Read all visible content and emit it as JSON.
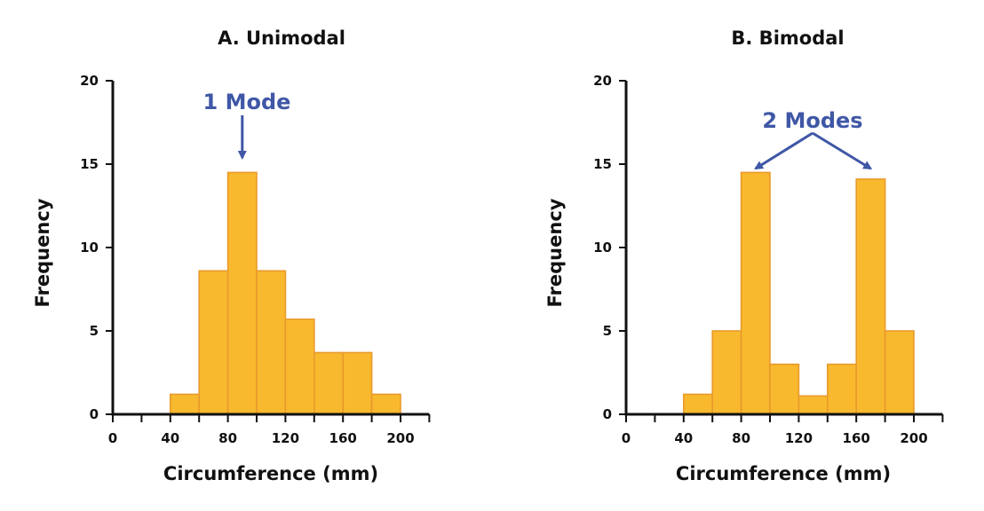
{
  "colors": {
    "bar_fill": "#F9B92E",
    "bar_stroke": "#E89A2C",
    "annotation": "#3F57A6",
    "axis": "#111111"
  },
  "chart_data": [
    {
      "type": "bar",
      "title": "A. Unimodal",
      "xlabel": "Circumference (mm)",
      "ylabel": "Frequency",
      "xlim": [
        0,
        220
      ],
      "ylim": [
        0,
        20
      ],
      "x_ticks": [
        0,
        20,
        40,
        60,
        80,
        100,
        120,
        140,
        160,
        180,
        200,
        220
      ],
      "x_tick_labels": [
        "0",
        "",
        "40",
        "",
        "80",
        "",
        "120",
        "",
        "160",
        "",
        "200",
        ""
      ],
      "y_ticks": [
        0,
        5,
        10,
        15,
        20
      ],
      "y_tick_labels": [
        "0",
        "5",
        "10",
        "15",
        "20"
      ],
      "bin_width": 20,
      "bins": [
        {
          "start": 40,
          "end": 60,
          "value": 1.2
        },
        {
          "start": 60,
          "end": 80,
          "value": 8.6
        },
        {
          "start": 80,
          "end": 100,
          "value": 14.5
        },
        {
          "start": 100,
          "end": 120,
          "value": 8.6
        },
        {
          "start": 120,
          "end": 140,
          "value": 5.7
        },
        {
          "start": 140,
          "end": 160,
          "value": 3.7
        },
        {
          "start": 160,
          "end": 180,
          "value": 3.7
        },
        {
          "start": 180,
          "end": 200,
          "value": 1.2
        }
      ],
      "annotation": {
        "text": "1 Mode",
        "points_to_x": [
          90
        ]
      }
    },
    {
      "type": "bar",
      "title": "B. Bimodal",
      "xlabel": "Circumference (mm)",
      "ylabel": "Frequency",
      "xlim": [
        0,
        220
      ],
      "ylim": [
        0,
        20
      ],
      "x_ticks": [
        0,
        20,
        40,
        60,
        80,
        100,
        120,
        140,
        160,
        180,
        200,
        220
      ],
      "x_tick_labels": [
        "0",
        "",
        "40",
        "",
        "80",
        "",
        "120",
        "",
        "160",
        "",
        "200",
        ""
      ],
      "y_ticks": [
        0,
        5,
        10,
        15,
        20
      ],
      "y_tick_labels": [
        "0",
        "5",
        "10",
        "15",
        "20"
      ],
      "bin_width": 20,
      "bins": [
        {
          "start": 40,
          "end": 60,
          "value": 1.2
        },
        {
          "start": 60,
          "end": 80,
          "value": 5.0
        },
        {
          "start": 80,
          "end": 100,
          "value": 14.5
        },
        {
          "start": 100,
          "end": 120,
          "value": 3.0
        },
        {
          "start": 120,
          "end": 140,
          "value": 1.1
        },
        {
          "start": 140,
          "end": 160,
          "value": 3.0
        },
        {
          "start": 160,
          "end": 180,
          "value": 14.1
        },
        {
          "start": 180,
          "end": 200,
          "value": 5.0
        }
      ],
      "annotation": {
        "text": "2 Modes",
        "points_to_x": [
          90,
          170
        ]
      }
    }
  ]
}
